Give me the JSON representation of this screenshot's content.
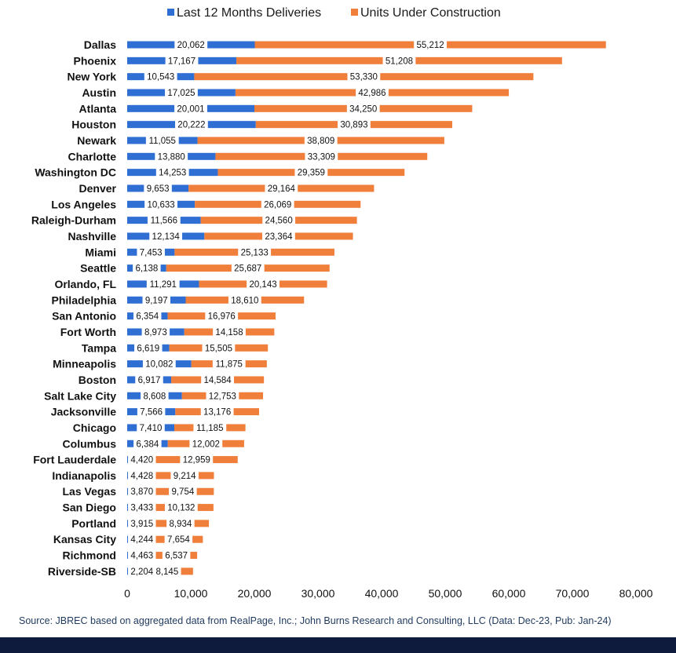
{
  "colors": {
    "deliveries": "#2f6ed3",
    "construction": "#f07f3c",
    "footer": "#0f1b3d",
    "label_box": "#ffffff"
  },
  "chart_data": {
    "type": "bar",
    "orientation": "horizontal",
    "stacked": true,
    "title": "",
    "xlabel": "",
    "ylabel": "",
    "xlim": [
      0,
      80000
    ],
    "xticks": [
      0,
      10000,
      20000,
      30000,
      40000,
      50000,
      60000,
      70000,
      80000
    ],
    "xtick_labels": [
      "0",
      "10,000",
      "20,000",
      "30,000",
      "40,000",
      "50,000",
      "60,000",
      "70,000",
      "80,000"
    ],
    "grid": false,
    "legend_position": "top",
    "categories": [
      "Dallas",
      "Phoenix",
      "New York",
      "Austin",
      "Atlanta",
      "Houston",
      "Newark",
      "Charlotte",
      "Washington DC",
      "Denver",
      "Los Angeles",
      "Raleigh-Durham",
      "Nashville",
      "Miami",
      "Seattle",
      "Orlando, FL",
      "Philadelphia",
      "San Antonio",
      "Fort Worth",
      "Tampa",
      "Minneapolis",
      "Boston",
      "Salt Lake City",
      "Jacksonville",
      "Chicago",
      "Columbus",
      "Fort Lauderdale",
      "Indianapolis",
      "Las Vegas",
      "San Diego",
      "Portland",
      "Kansas City",
      "Richmond",
      "Riverside-SB"
    ],
    "series": [
      {
        "name": "Last 12 Months Deliveries",
        "values": [
          20062,
          17167,
          10543,
          17025,
          20001,
          20222,
          11055,
          13880,
          14253,
          9653,
          10633,
          11566,
          12134,
          7453,
          6138,
          11291,
          9197,
          6354,
          8973,
          6619,
          10082,
          6917,
          8608,
          7566,
          7410,
          6384,
          4420,
          4428,
          3870,
          3433,
          3915,
          4244,
          4463,
          2204
        ],
        "labels": [
          "20,062",
          "17,167",
          "10,543",
          "17,025",
          "20,001",
          "20,222",
          "11,055",
          "13,880",
          "14,253",
          "9,653",
          "10,633",
          "11,566",
          "12,134",
          "7,453",
          "6,138",
          "11,291",
          "9,197",
          "6,354",
          "8,973",
          "6,619",
          "10,082",
          "6,917",
          "8,608",
          "7,566",
          "7,410",
          "6,384",
          "4,420",
          "4,428",
          "3,870",
          "3,433",
          "3,915",
          "4,244",
          "4,463",
          "2,204"
        ]
      },
      {
        "name": "Units Under Construction",
        "values": [
          55212,
          51208,
          53330,
          42986,
          34250,
          30893,
          38809,
          33309,
          29359,
          29164,
          26069,
          24560,
          23364,
          25133,
          25687,
          20143,
          18610,
          16976,
          14158,
          15505,
          11875,
          14584,
          12753,
          13176,
          11185,
          12002,
          12959,
          9214,
          9754,
          10132,
          8934,
          7654,
          6537,
          8145
        ],
        "labels": [
          "55,212",
          "51,208",
          "53,330",
          "42,986",
          "34,250",
          "30,893",
          "38,809",
          "33,309",
          "29,359",
          "29,164",
          "26,069",
          "24,560",
          "23,364",
          "25,133",
          "25,687",
          "20,143",
          "18,610",
          "16,976",
          "14,158",
          "15,505",
          "11,875",
          "14,584",
          "12,753",
          "13,176",
          "11,185",
          "12,002",
          "12,959",
          "9,214",
          "9,754",
          "10,132",
          "8,934",
          "7,654",
          "6,537",
          "8,145"
        ]
      }
    ]
  },
  "source_note": "Source: JBREC based on aggregated data from RealPage, Inc.; John Burns Research and Consulting, LLC (Data: Dec-23, Pub: Jan-24)"
}
